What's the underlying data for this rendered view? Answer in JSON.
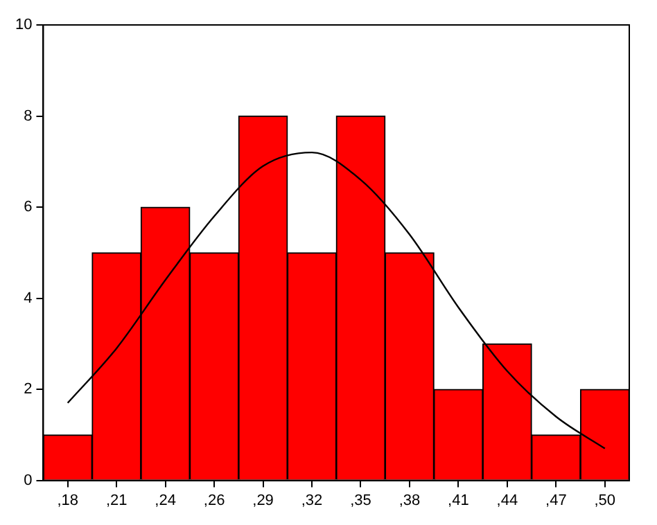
{
  "chart_data": {
    "type": "bar",
    "categories": [
      ",18",
      ",21",
      ",24",
      ",26",
      ",29",
      ",32",
      ",35",
      ",38",
      ",41",
      ",44",
      ",47",
      ",50"
    ],
    "values": [
      1,
      5,
      6,
      5,
      8,
      5,
      8,
      5,
      2,
      3,
      1,
      2
    ],
    "color": "#ff0000",
    "series": [
      {
        "type": "line",
        "color": "#000000",
        "values": [
          1.7,
          2.9,
          4.4,
          5.8,
          6.9,
          7.2,
          6.6,
          5.4,
          3.8,
          2.4,
          1.4,
          0.7
        ]
      }
    ],
    "ylim": [
      0,
      10
    ],
    "yticks": [
      0,
      2,
      4,
      6,
      8,
      10
    ],
    "grid": false,
    "legend": false,
    "line_style": "solid",
    "marker": "none"
  }
}
